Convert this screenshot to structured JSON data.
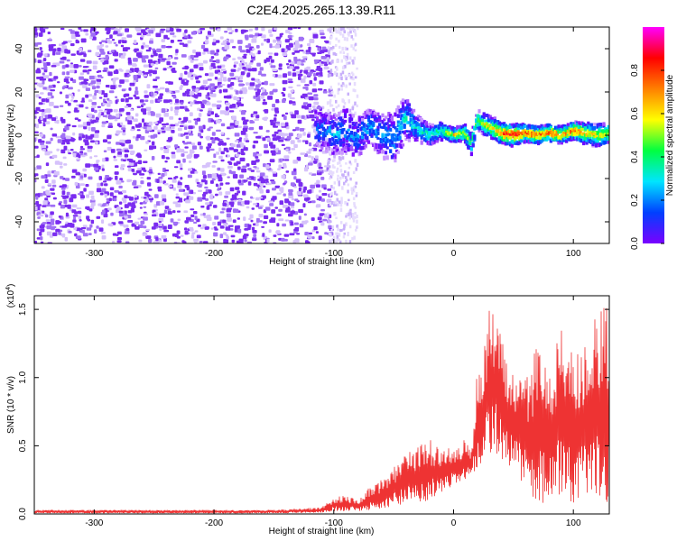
{
  "figure": {
    "title": "C2E4.2025.265.13.39.R11"
  },
  "chart_data": [
    {
      "type": "heatmap",
      "name": "spectrogram",
      "xlabel": "Height of straight line (km)",
      "ylabel": "Frequency (Hz)",
      "xlim": [
        -350,
        130
      ],
      "ylim": [
        -50,
        50
      ],
      "xticks": [
        -300,
        -200,
        -100,
        0,
        100
      ],
      "yticks": [
        -40,
        -20,
        0,
        20,
        40
      ],
      "xtick_labels": [
        "-300",
        "-200",
        "-100",
        "0",
        "100"
      ],
      "ytick_labels": [
        "-40",
        "-20",
        "0",
        "20",
        "40"
      ],
      "noise_region_km": [
        -350,
        -110
      ],
      "signal_region_km": [
        -115,
        130
      ],
      "ridge": {
        "x": [
          -115,
          -100,
          -90,
          -80,
          -70,
          -60,
          -50,
          -40,
          -30,
          -20,
          -10,
          0,
          10,
          15,
          20,
          30,
          40,
          50,
          60,
          70,
          80,
          90,
          100,
          110,
          120,
          130
        ],
        "freq": [
          3,
          0,
          2,
          -1,
          4,
          0,
          -2,
          8,
          3,
          0,
          2,
          0,
          1,
          -4,
          7,
          4,
          1,
          0,
          1,
          0,
          1,
          0,
          2,
          1,
          0,
          1
        ],
        "spread": [
          8,
          9,
          10,
          9,
          8,
          10,
          12,
          10,
          6,
          5,
          4,
          3,
          4,
          5,
          5,
          5,
          5,
          5,
          4,
          4,
          4,
          4,
          4,
          5,
          5,
          5
        ],
        "amplitude": [
          0.3,
          0.35,
          0.3,
          0.3,
          0.35,
          0.3,
          0.35,
          0.4,
          0.4,
          0.45,
          0.5,
          0.7,
          0.6,
          0.5,
          0.55,
          0.65,
          0.8,
          0.9,
          0.85,
          0.8,
          0.85,
          0.75,
          0.8,
          0.7,
          0.65,
          0.6
        ]
      },
      "colorbar": {
        "label": "Normalized spectral amplitude",
        "range": [
          0,
          1
        ],
        "ticks": [
          0.0,
          0.2,
          0.4,
          0.6,
          0.8
        ],
        "tick_labels": [
          "0.0",
          "0.2",
          "0.4",
          "0.6",
          "0.8"
        ],
        "colormap": [
          "#ffffff",
          "#7a00ff",
          "#0040ff",
          "#00e5ff",
          "#00ff40",
          "#ffff00",
          "#ff8000",
          "#ff0000",
          "#ff00ff"
        ]
      }
    },
    {
      "type": "line",
      "name": "snr",
      "xlabel": "Height of straight line (km)",
      "ylabel": "SNR (10 * v/v)",
      "multiplier_base": "(x10",
      "multiplier_exp": "4",
      "multiplier_close": ")",
      "xlim": [
        -350,
        130
      ],
      "ylim": [
        0,
        1.6
      ],
      "xticks": [
        -300,
        -200,
        -100,
        0,
        100
      ],
      "yticks": [
        0.0,
        0.5,
        1.0,
        1.5
      ],
      "xtick_labels": [
        "-300",
        "-200",
        "-100",
        "0",
        "100"
      ],
      "ytick_labels": [
        "0.0",
        "0.5",
        "1.0",
        "1.5"
      ],
      "color": "#ee3333",
      "envelope": {
        "x": [
          -350,
          -250,
          -150,
          -110,
          -100,
          -90,
          -80,
          -70,
          -60,
          -50,
          -40,
          -30,
          -20,
          -10,
          0,
          10,
          15,
          20,
          25,
          30,
          35,
          40,
          50,
          60,
          70,
          80,
          90,
          100,
          110,
          120,
          125,
          130
        ],
        "upper": [
          0.03,
          0.03,
          0.03,
          0.05,
          0.12,
          0.14,
          0.1,
          0.2,
          0.25,
          0.35,
          0.45,
          0.5,
          0.55,
          0.5,
          0.5,
          0.55,
          0.45,
          1.1,
          1.25,
          1.5,
          1.5,
          1.3,
          1.05,
          1.0,
          1.25,
          1.1,
          1.35,
          1.2,
          1.35,
          1.45,
          1.55,
          1.55
        ],
        "lower": [
          0.005,
          0.005,
          0.005,
          0.01,
          0.02,
          0.02,
          0.02,
          0.03,
          0.04,
          0.05,
          0.06,
          0.08,
          0.1,
          0.15,
          0.2,
          0.25,
          0.3,
          0.3,
          0.4,
          0.45,
          0.45,
          0.4,
          0.3,
          0.2,
          0.05,
          0.1,
          0.15,
          0.05,
          0.1,
          0.1,
          0.05,
          0.05
        ]
      }
    }
  ]
}
